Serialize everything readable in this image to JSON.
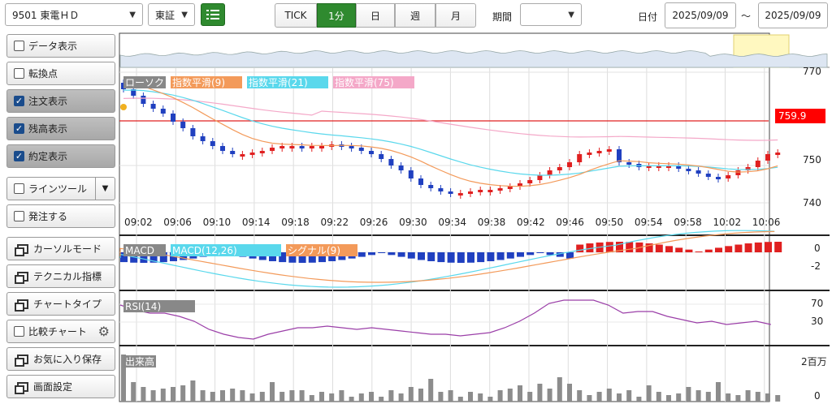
{
  "toolbar": {
    "symbol": "9501 東電ＨＤ",
    "market": "東証",
    "tabs": [
      "TICK",
      "1分",
      "日",
      "週",
      "月"
    ],
    "active_tab": "1分",
    "period_label": "期間",
    "period_value": "",
    "date_label": "日付",
    "date_from": "2025/09/09",
    "date_sep": "～",
    "date_to": "2025/09/09"
  },
  "sidebar": [
    {
      "label": "データ表示",
      "type": "check",
      "checked": false
    },
    {
      "label": "転換点",
      "type": "check",
      "checked": false
    },
    {
      "label": "注文表示",
      "type": "check",
      "checked": true
    },
    {
      "label": "残高表示",
      "type": "check",
      "checked": true
    },
    {
      "label": "約定表示",
      "type": "check",
      "checked": true
    },
    {
      "label": "ラインツール",
      "type": "check-dropdown",
      "checked": false
    },
    {
      "label": "発注する",
      "type": "check",
      "checked": false
    },
    {
      "label": "カーソルモード",
      "type": "window"
    },
    {
      "label": "テクニカル指標",
      "type": "window"
    },
    {
      "label": "チャートタイプ",
      "type": "window"
    },
    {
      "label": "比較チャート",
      "type": "check-gear",
      "checked": false
    },
    {
      "label": "お気に入り保存",
      "type": "window"
    },
    {
      "label": "画面設定",
      "type": "window"
    }
  ],
  "main_chart": {
    "legend": [
      {
        "label": "ローソク",
        "color": "#888888"
      },
      {
        "label": "指数平滑(9)",
        "color": "#f39a5a"
      },
      {
        "label": "指数平滑(21)",
        "color": "#5ad8ec"
      },
      {
        "label": "指数平滑(75)",
        "color": "#f4a8c8"
      }
    ],
    "y_ticks": [
      "770",
      "750",
      "740"
    ],
    "price_line_label": "759.9",
    "x_ticks": [
      "09:02",
      "09:06",
      "09:10",
      "09:14",
      "09:18",
      "09:22",
      "09:26",
      "09:30",
      "09:34",
      "09:38",
      "09:42",
      "09:46",
      "09:50",
      "09:54",
      "09:58",
      "10:02",
      "10:06"
    ]
  },
  "macd": {
    "legend": [
      {
        "label": "MACD",
        "color": "#888888"
      },
      {
        "label": "MACD(12,26)",
        "color": "#5ad8ec"
      },
      {
        "label": "シグナル(9)",
        "color": "#f39a5a"
      }
    ],
    "y_ticks": [
      "0",
      "-2"
    ]
  },
  "rsi": {
    "legend": [
      {
        "label": "RSI(14)",
        "color": "#888888"
      }
    ],
    "y_ticks": [
      "70",
      "30"
    ]
  },
  "volume": {
    "legend": [
      {
        "label": "出来高",
        "color": "#888888"
      }
    ],
    "y_ticks": [
      "2百万",
      "0"
    ]
  },
  "colors": {
    "up": "#e02020",
    "down": "#2040c0",
    "ema9": "#f39a5a",
    "ema21": "#5ad8ec",
    "ema75": "#f4a8c8",
    "rsi": "#9b3fa8",
    "volume": "#8c8c8c",
    "price_line": "#e02020"
  }
}
